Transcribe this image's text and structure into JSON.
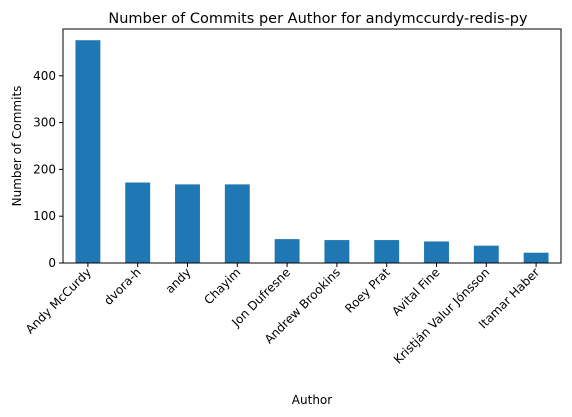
{
  "chart_data": {
    "type": "bar",
    "title": "Number of Commits per Author for andymccurdy-redis-py",
    "xlabel": "Author",
    "ylabel": "Number of Commits",
    "categories": [
      "Andy McCurdy",
      "dvora-h",
      "andy",
      "Chayim",
      "Jon Dufresne",
      "Andrew Brookins",
      "Roey Prat",
      "Avital Fine",
      "Kristján Valur Jónsson",
      "Itamar Haber"
    ],
    "values": [
      476,
      172,
      168,
      168,
      51,
      49,
      49,
      46,
      37,
      22
    ],
    "ylim": [
      0,
      500
    ],
    "yticks": [
      0,
      100,
      200,
      300,
      400
    ],
    "bar_color": "#1f77b4",
    "grid": false,
    "legend": "none"
  }
}
